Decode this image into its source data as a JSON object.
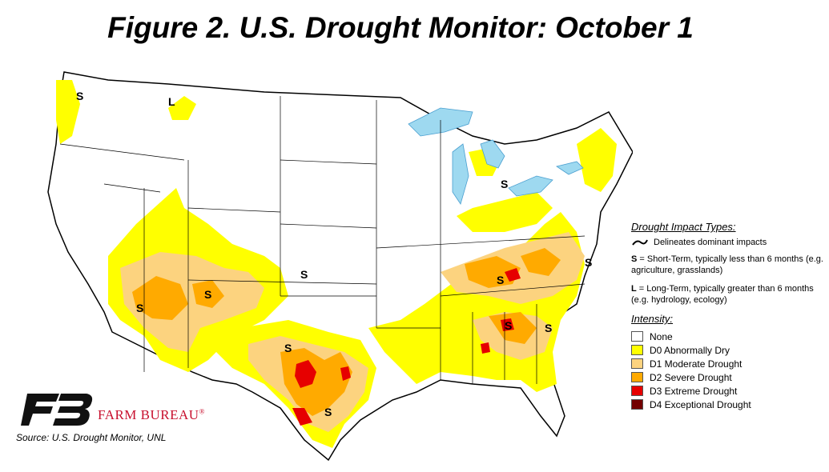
{
  "title": "Figure 2. U.S. Drought Monitor: October 1",
  "legend": {
    "impact_heading": "Drought Impact Types:",
    "delineates": "Delineates dominant impacts",
    "short_term_key": "S",
    "short_term_text": " = Short-Term, typically less than 6 months (e.g. agriculture, grasslands)",
    "long_term_key": "L",
    "long_term_text": " = Long-Term, typically greater than 6 months (e.g. hydrology, ecology)",
    "intensity_heading": "Intensity:",
    "categories": [
      {
        "label": "None",
        "color": "#ffffff"
      },
      {
        "label": "D0 Abnormally Dry",
        "color": "#ffff00"
      },
      {
        "label": "D1 Moderate Drought",
        "color": "#fcd37f"
      },
      {
        "label": "D2 Severe Drought",
        "color": "#ffaa00"
      },
      {
        "label": "D3 Extreme Drought",
        "color": "#e60000"
      },
      {
        "label": "D4 Exceptional Drought",
        "color": "#730000"
      }
    ]
  },
  "map_labels": [
    "S",
    "S",
    "S",
    "S",
    "S",
    "S",
    "S",
    "S",
    "S",
    "S",
    "S",
    "L"
  ],
  "logo": {
    "name": "FARM BUREAU",
    "mark": "®"
  },
  "source": "Source: U.S. Drought Monitor, UNL"
}
